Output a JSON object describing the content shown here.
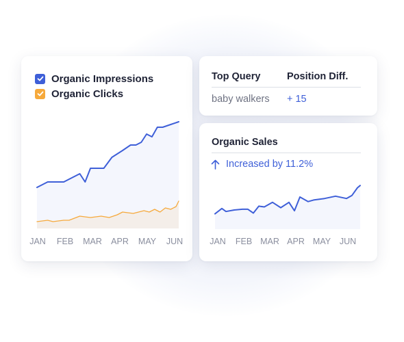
{
  "colors": {
    "impressions": "#3e5fd8",
    "clicks": "#f6a93b",
    "sales": "#3e5fd8",
    "text_dark": "#1e2235",
    "text_muted": "#8a8e9e"
  },
  "legend": {
    "items": [
      {
        "label": "Organic Impressions",
        "icon": "check-icon",
        "color": "#3e5fd8"
      },
      {
        "label": "Organic Clicks",
        "icon": "check-icon",
        "color": "#f6a93b"
      }
    ]
  },
  "query_card": {
    "col1_header": "Top Query",
    "col2_header": "Position Diff.",
    "query": "baby walkers",
    "diff": "+ 15"
  },
  "sales_card": {
    "title": "Organic Sales",
    "arrow_icon": "arrow-up-icon",
    "delta": "Increased by 11.2%"
  },
  "chart_data": [
    {
      "type": "area",
      "categories": [
        "JAN",
        "FEB",
        "MAR",
        "APR",
        "MAY",
        "JUN"
      ],
      "series": [
        {
          "name": "Organic Impressions",
          "color": "#3e5fd8",
          "x": [
            0.0,
            0.4,
            1.0,
            1.6,
            1.8,
            2.0,
            2.5,
            2.8,
            3.2,
            3.5,
            3.7,
            3.9,
            4.1,
            4.3,
            4.5,
            4.7,
            5.0,
            5.3
          ],
          "values": [
            30,
            34,
            34,
            40,
            34,
            44,
            44,
            52,
            57,
            61,
            61,
            63,
            69,
            67,
            74,
            74,
            76,
            78
          ]
        },
        {
          "name": "Organic Clicks",
          "color": "#f6a93b",
          "x": [
            0.0,
            0.4,
            0.6,
            1.0,
            1.2,
            1.6,
            2.0,
            2.4,
            2.7,
            3.0,
            3.2,
            3.6,
            3.8,
            4.0,
            4.2,
            4.4,
            4.6,
            4.8,
            5.0,
            5.2,
            5.3
          ],
          "values": [
            5,
            6,
            5,
            6,
            6,
            9,
            8,
            9,
            8,
            10,
            12,
            11,
            12,
            13,
            12,
            14,
            12,
            15,
            14,
            16,
            20
          ]
        }
      ],
      "ylim": [
        0,
        100
      ],
      "grid": false,
      "legend": "top-left"
    },
    {
      "type": "area",
      "categories": [
        "JAN",
        "FEB",
        "MAR",
        "APR",
        "MAY",
        "JUN"
      ],
      "series": [
        {
          "name": "Organic Sales",
          "color": "#3e5fd8",
          "x": [
            0.0,
            0.25,
            0.4,
            0.7,
            1.0,
            1.2,
            1.4,
            1.6,
            1.8,
            2.1,
            2.4,
            2.7,
            2.9,
            3.1,
            3.4,
            3.6,
            4.0,
            4.4,
            4.8,
            5.0,
            5.2,
            5.3
          ],
          "values": [
            20,
            27,
            23,
            25,
            26,
            26,
            21,
            30,
            29,
            35,
            28,
            35,
            24,
            42,
            36,
            38,
            40,
            43,
            40,
            44,
            54,
            57
          ]
        }
      ],
      "ylim": [
        0,
        100
      ],
      "grid": false
    }
  ]
}
